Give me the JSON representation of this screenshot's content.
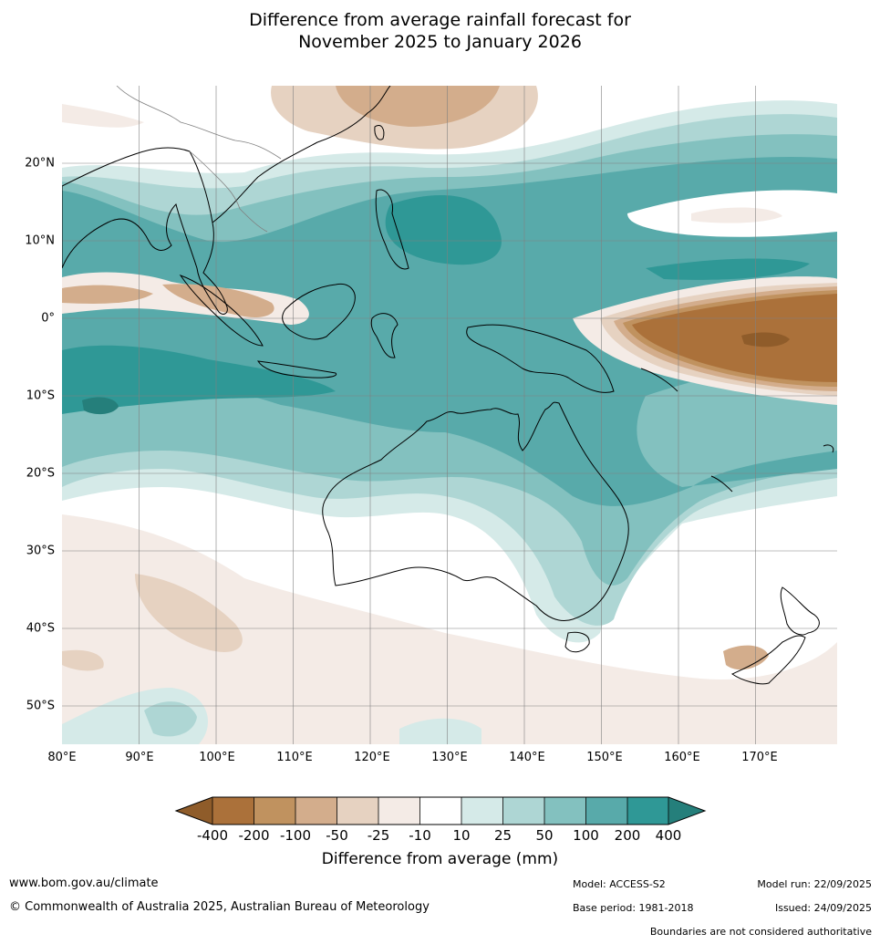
{
  "title": {
    "line1": "Difference from average rainfall forecast for",
    "line2": "November 2025 to January 2026"
  },
  "map": {
    "longitude_labels": [
      "80°E",
      "90°E",
      "100°E",
      "110°E",
      "120°E",
      "130°E",
      "140°E",
      "150°E",
      "160°E",
      "170°E"
    ],
    "latitude_labels": [
      "20°N",
      "10°N",
      "0°",
      "10°S",
      "20°S",
      "30°S",
      "40°S",
      "50°S"
    ],
    "region": "Australia, Indonesia and Western Pacific"
  },
  "legend": {
    "title": "Difference from average (mm)",
    "ticks": [
      "-400",
      "-200",
      "-100",
      "-50",
      "-25",
      "-10",
      "10",
      "25",
      "50",
      "100",
      "200",
      "400"
    ],
    "colors": {
      "lt_m400": "#8f5c2a",
      "m400_m200": "#ab713a",
      "m200_m100": "#c0925f",
      "m100_m50": "#d3ad8c",
      "m50_m25": "#e6d2c1",
      "m25_m10": "#f4ebe6",
      "m10_10": "#ffffff",
      "p10_25": "#d5eae8",
      "p25_50": "#aed6d4",
      "p50_100": "#83c1bf",
      "p100_200": "#58aaaa",
      "p200_400": "#2f9896",
      "gt_400": "#257f7b"
    }
  },
  "footer": {
    "website": "www.bom.gov.au/climate",
    "copyright": "© Commonwealth of Australia 2025, Australian Bureau of Meteorology",
    "model": "Model: ACCESS-S2",
    "base_period": "Base period: 1981-2018",
    "model_run": "Model run: 22/09/2025",
    "issued": "Issued: 24/09/2025",
    "disclaimer": "Boundaries are not considered authoritative"
  }
}
